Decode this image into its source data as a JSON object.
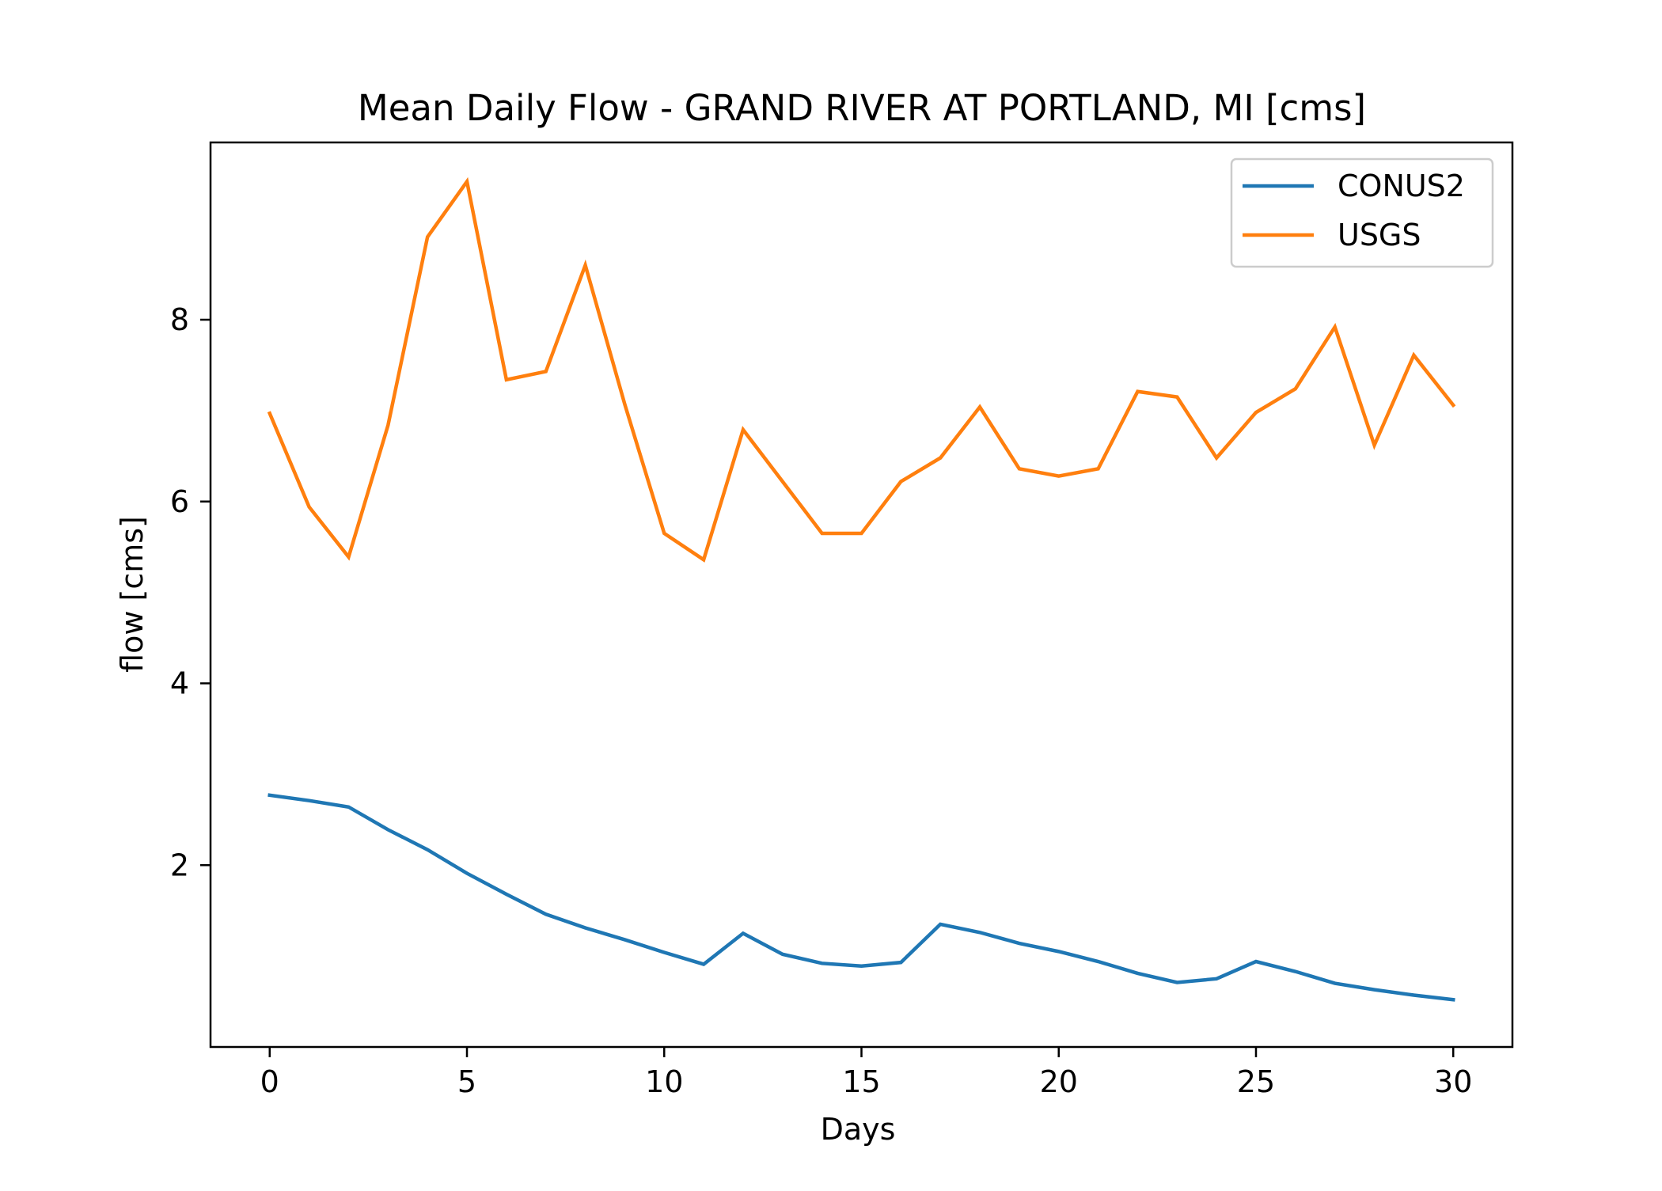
{
  "chart_data": {
    "type": "line",
    "title": "Mean Daily Flow - GRAND RIVER AT PORTLAND, MI [cms]",
    "xlabel": "Days",
    "ylabel": "flow [cms]",
    "xlim": [
      -1.5,
      31.5
    ],
    "ylim": [
      0.0,
      9.95
    ],
    "xticks": [
      0,
      5,
      10,
      15,
      20,
      25,
      30
    ],
    "yticks": [
      2,
      4,
      6,
      8
    ],
    "grid": false,
    "legend_position": "top-right",
    "x": [
      0,
      1,
      2,
      3,
      4,
      5,
      6,
      7,
      8,
      9,
      10,
      11,
      12,
      13,
      14,
      15,
      16,
      17,
      18,
      19,
      20,
      21,
      22,
      23,
      24,
      25,
      26,
      27,
      28,
      29,
      30
    ],
    "series": [
      {
        "name": "CONUS2",
        "color": "#1f77b4",
        "values": [
          2.77,
          2.71,
          2.64,
          2.39,
          2.17,
          1.91,
          1.68,
          1.46,
          1.31,
          1.18,
          1.04,
          0.91,
          1.25,
          1.02,
          0.92,
          0.89,
          0.93,
          1.35,
          1.26,
          1.14,
          1.05,
          0.94,
          0.81,
          0.71,
          0.75,
          0.94,
          0.83,
          0.7,
          0.63,
          0.57,
          0.52
        ]
      },
      {
        "name": "USGS",
        "color": "#ff7f0e",
        "values": [
          6.97,
          5.94,
          5.39,
          6.84,
          8.91,
          9.52,
          7.34,
          7.43,
          8.6,
          7.07,
          5.65,
          5.36,
          6.79,
          6.22,
          5.65,
          5.65,
          6.22,
          6.48,
          7.04,
          6.36,
          6.28,
          6.36,
          7.21,
          7.15,
          6.48,
          6.98,
          7.24,
          7.92,
          6.62,
          7.61,
          7.06
        ]
      }
    ]
  }
}
